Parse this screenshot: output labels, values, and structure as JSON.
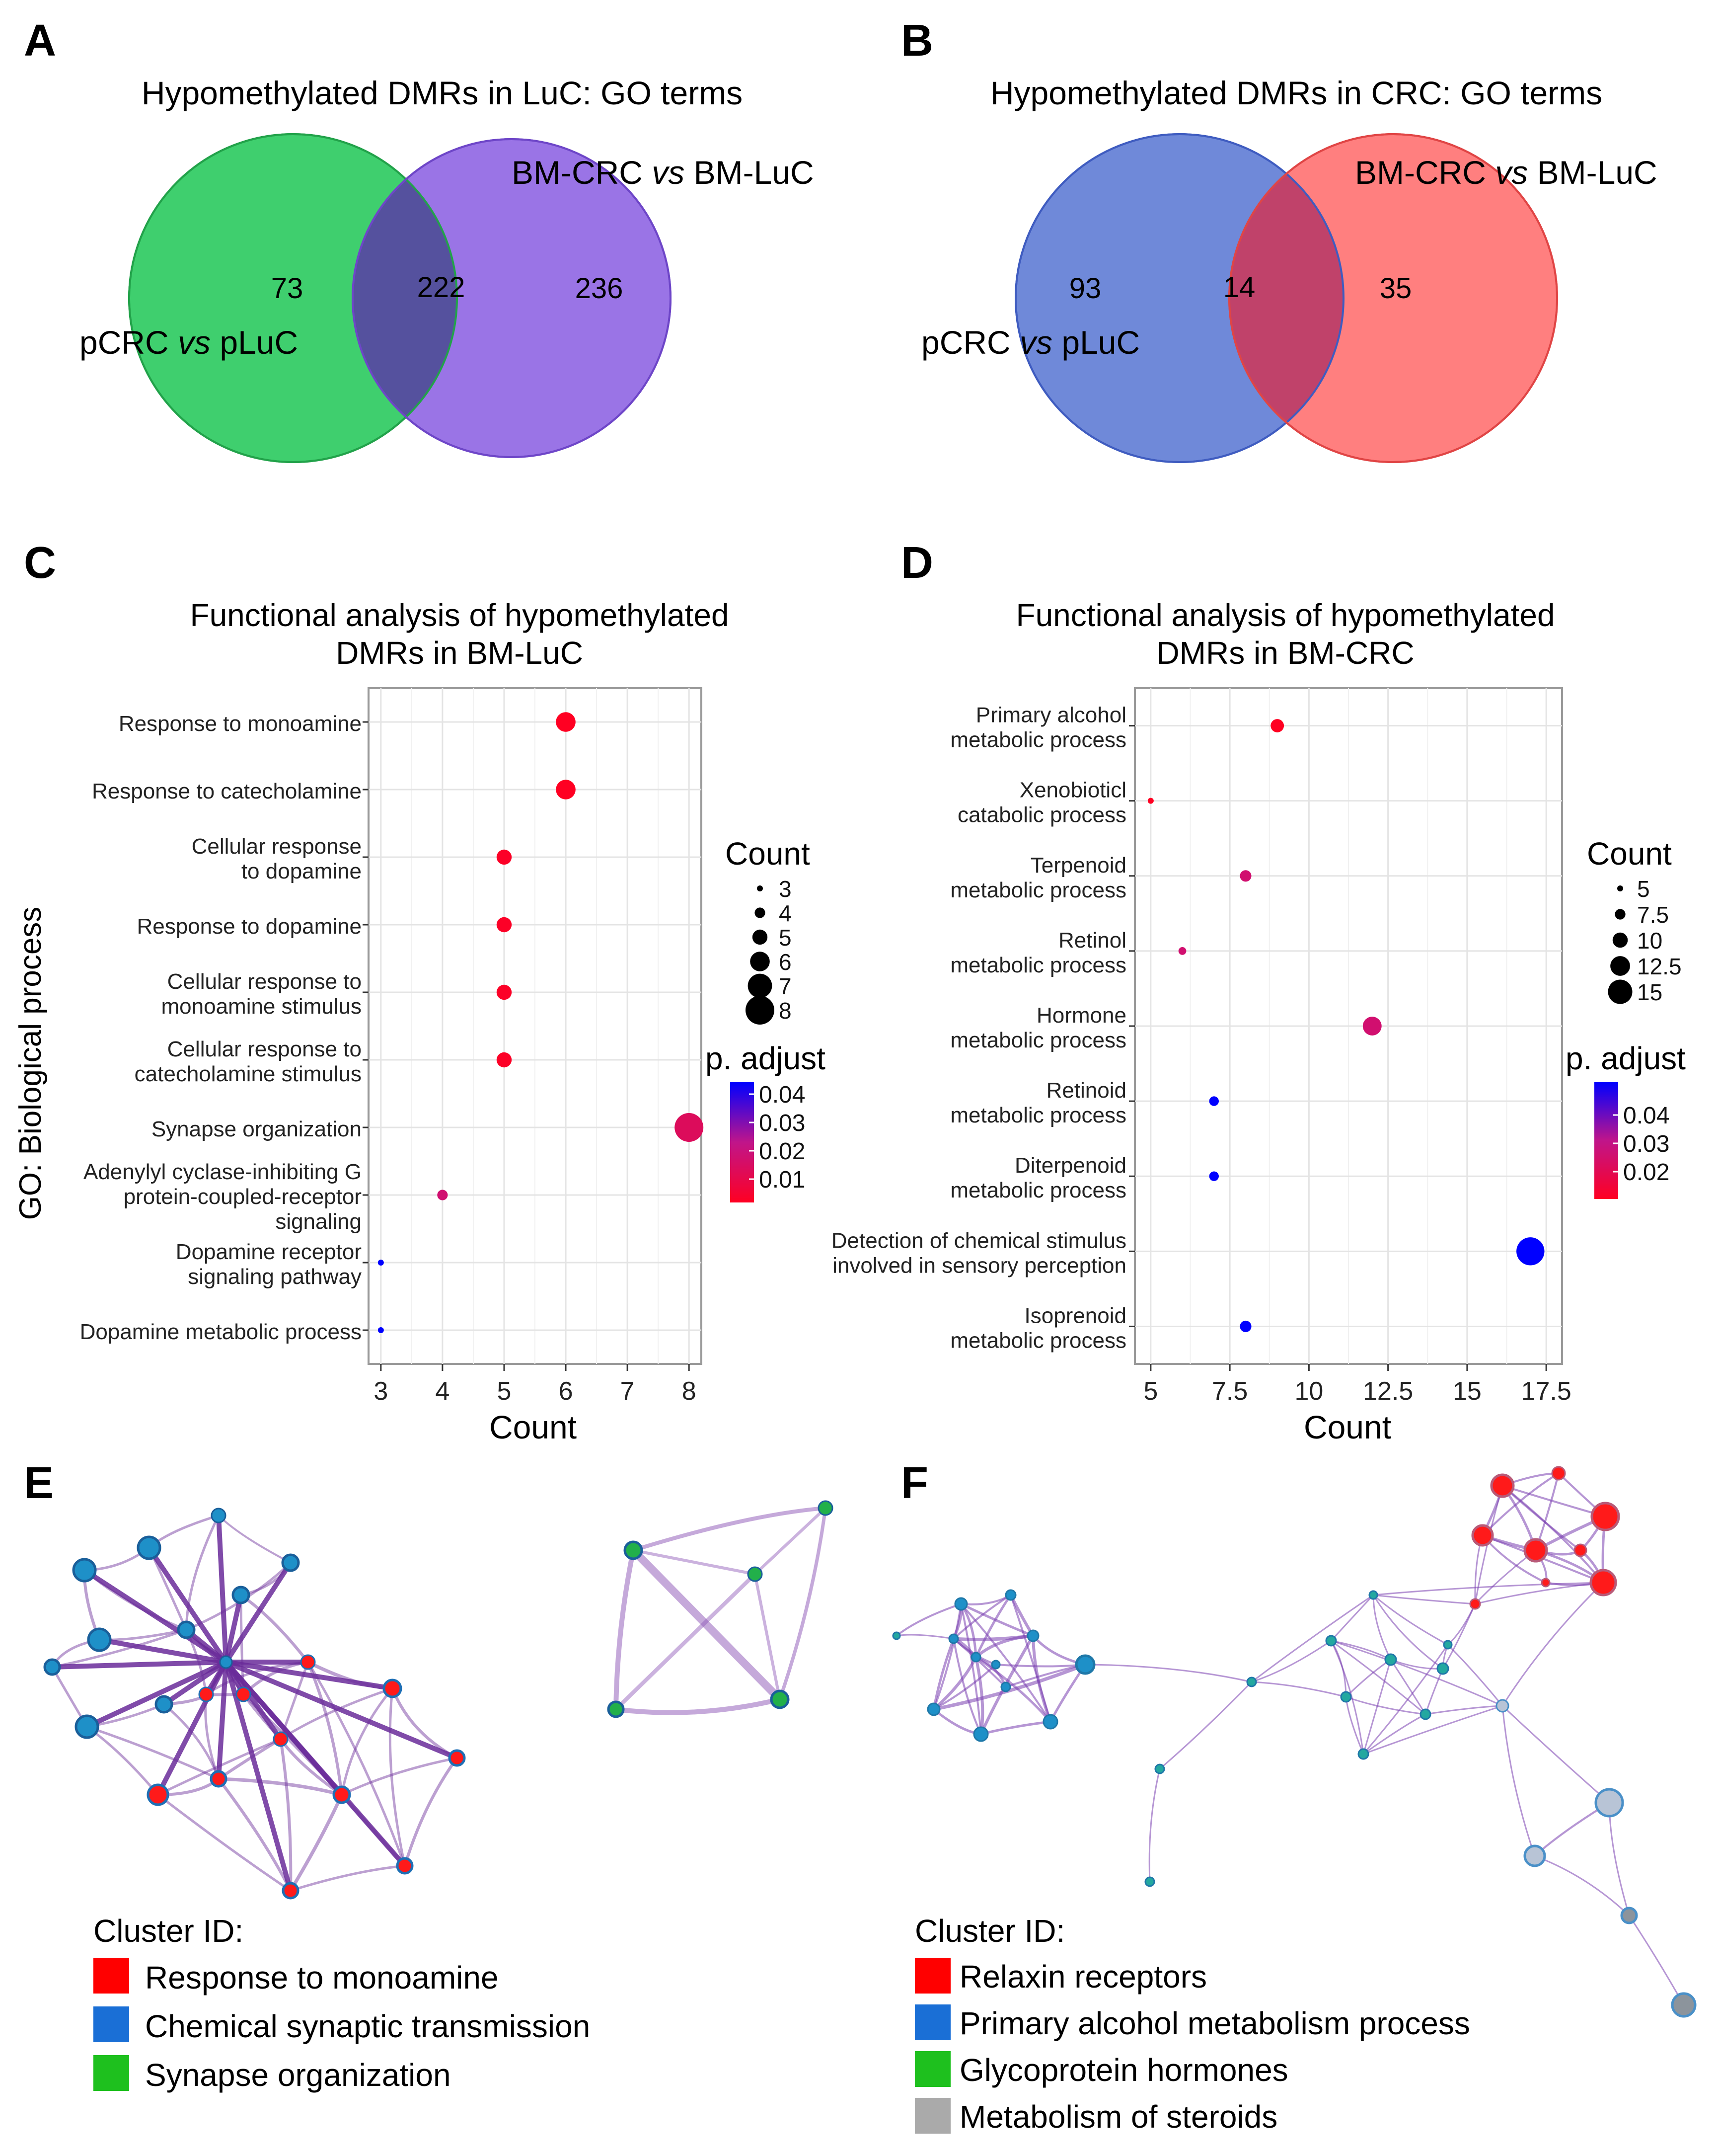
{
  "panels": {
    "A": {
      "letter": "A",
      "title": "Hypomethylated DMRs in LuC: GO terms",
      "set_left": {
        "label_parts": [
          "pCRC ",
          "vs",
          " pLuC"
        ],
        "only": "73",
        "color": "#3fcf6e"
      },
      "set_right": {
        "label_parts": [
          "BM-CRC ",
          "vs",
          " BM-LuC"
        ],
        "only": "236",
        "color": "#9a74e6"
      },
      "overlap": "222",
      "overlap_color": "#55519e"
    },
    "B": {
      "letter": "B",
      "title": "Hypomethylated DMRs in CRC: GO terms",
      "set_left": {
        "label_parts": [
          "pCRC ",
          "vs",
          " pLuC"
        ],
        "only": "93",
        "color": "#6f89d9"
      },
      "set_right": {
        "label_parts": [
          "BM-CRC ",
          "vs",
          " BM-LuC"
        ],
        "only": "35",
        "color": "#ff7f7f"
      },
      "overlap": "14",
      "overlap_color": "#c0426a"
    },
    "C": {
      "letter": "C",
      "title_lines": [
        "Functional analysis of hypomethylated",
        "DMRs in BM-LuC"
      ],
      "ylabel": "GO: Biological process",
      "xlabel": "Count",
      "size_legend_title": "Count",
      "color_legend_title": "p. adjust"
    },
    "D": {
      "letter": "D",
      "title_lines": [
        "Functional analysis of hypomethylated",
        "DMRs in BM-CRC"
      ],
      "xlabel": "Count",
      "size_legend_title": "Count",
      "color_legend_title": "p. adjust"
    },
    "E": {
      "letter": "E",
      "legend_title": "Cluster ID:",
      "clusters": [
        {
          "label": "Response to monoamine",
          "color": "#ff0000"
        },
        {
          "label": "Chemical synaptic transmission",
          "color": "#1a6fd6"
        },
        {
          "label": "Synapse organization",
          "color": "#1ec01e"
        }
      ]
    },
    "F": {
      "letter": "F",
      "legend_title": "Cluster ID:",
      "clusters": [
        {
          "label": "Relaxin receptors",
          "color": "#ff0000"
        },
        {
          "label": "Primary alcohol metabolism process",
          "color": "#1a6fd6"
        },
        {
          "label": "Glycoprotein hormones",
          "color": "#1ec01e"
        },
        {
          "label": "Metabolism of steroids",
          "color": "#aaaaaa"
        }
      ]
    }
  },
  "chart_data": [
    {
      "panel": "C",
      "type": "scatter",
      "subtype": "dot-plot",
      "title": "Functional analysis of hypomethylated DMRs in BM-LuC",
      "xlabel": "Count",
      "ylabel": "GO: Biological process",
      "xlim": [
        2.8,
        8.2
      ],
      "xticks": [
        3,
        4,
        5,
        6,
        7,
        8
      ],
      "grid": true,
      "size_legend": [
        3,
        4,
        5,
        6,
        7,
        8
      ],
      "color_legend": {
        "ticks": [
          "0.04",
          "0.03",
          "0.02",
          "0.01"
        ],
        "range": [
          0.005,
          0.045
        ],
        "low_color": "#ff0022",
        "high_color": "#0000ff"
      },
      "terms": [
        {
          "lines": [
            "Response to monoamine"
          ],
          "count": 6,
          "p_adjust": 0.003
        },
        {
          "lines": [
            "Response to catecholamine"
          ],
          "count": 6,
          "p_adjust": 0.003
        },
        {
          "lines": [
            "Cellular response",
            "to dopamine"
          ],
          "count": 5,
          "p_adjust": 0.006
        },
        {
          "lines": [
            "Response to dopamine"
          ],
          "count": 5,
          "p_adjust": 0.006
        },
        {
          "lines": [
            "Cellular response to",
            "monoamine stimulus"
          ],
          "count": 5,
          "p_adjust": 0.006
        },
        {
          "lines": [
            "Cellular response to",
            "catecholamine stimulus"
          ],
          "count": 5,
          "p_adjust": 0.006
        },
        {
          "lines": [
            "Synapse organization"
          ],
          "count": 8,
          "p_adjust": 0.016
        },
        {
          "lines": [
            "Adenylyl cyclase-inhibiting G",
            "protein-coupled-receptor",
            "signaling"
          ],
          "count": 4,
          "p_adjust": 0.02
        },
        {
          "lines": [
            "Dopamine receptor",
            "signaling pathway"
          ],
          "count": 3,
          "p_adjust": 0.045
        },
        {
          "lines": [
            "Dopamine metabolic process"
          ],
          "count": 3,
          "p_adjust": 0.045
        }
      ]
    },
    {
      "panel": "D",
      "type": "scatter",
      "subtype": "dot-plot",
      "title": "Functional analysis of hypomethylated DMRs in BM-CRC",
      "xlabel": "Count",
      "xlim": [
        4.5,
        18
      ],
      "xticks": [
        5,
        7.5,
        10,
        12.5,
        15,
        17.5
      ],
      "grid": true,
      "size_legend": [
        5,
        7.5,
        10,
        12.5,
        15
      ],
      "color_legend": {
        "ticks": [
          "0.04",
          "0.03",
          "0.02"
        ],
        "range": [
          0.012,
          0.05
        ],
        "low_color": "#ff0022",
        "high_color": "#0000ff"
      },
      "terms": [
        {
          "lines": [
            "Primary alcohol",
            "metabolic process"
          ],
          "count": 9,
          "p_adjust": 0.012
        },
        {
          "lines": [
            "Xenobioticl",
            "catabolic process"
          ],
          "count": 5,
          "p_adjust": 0.012
        },
        {
          "lines": [
            "Terpenoid",
            "metabolic process"
          ],
          "count": 8,
          "p_adjust": 0.026
        },
        {
          "lines": [
            "Retinol",
            "metabolic process"
          ],
          "count": 6,
          "p_adjust": 0.026
        },
        {
          "lines": [
            "Hormone",
            "metabolic process"
          ],
          "count": 12,
          "p_adjust": 0.026
        },
        {
          "lines": [
            "Retinoid",
            "metabolic process"
          ],
          "count": 7,
          "p_adjust": 0.05
        },
        {
          "lines": [
            "Diterpenoid",
            "metabolic process"
          ],
          "count": 7,
          "p_adjust": 0.05
        },
        {
          "lines": [
            "Detection of chemical stimulus",
            "involved in sensory perception"
          ],
          "count": 17,
          "p_adjust": 0.05
        },
        {
          "lines": [
            "Isoprenoid",
            "metabolic process"
          ],
          "count": 8,
          "p_adjust": 0.05
        }
      ]
    }
  ]
}
